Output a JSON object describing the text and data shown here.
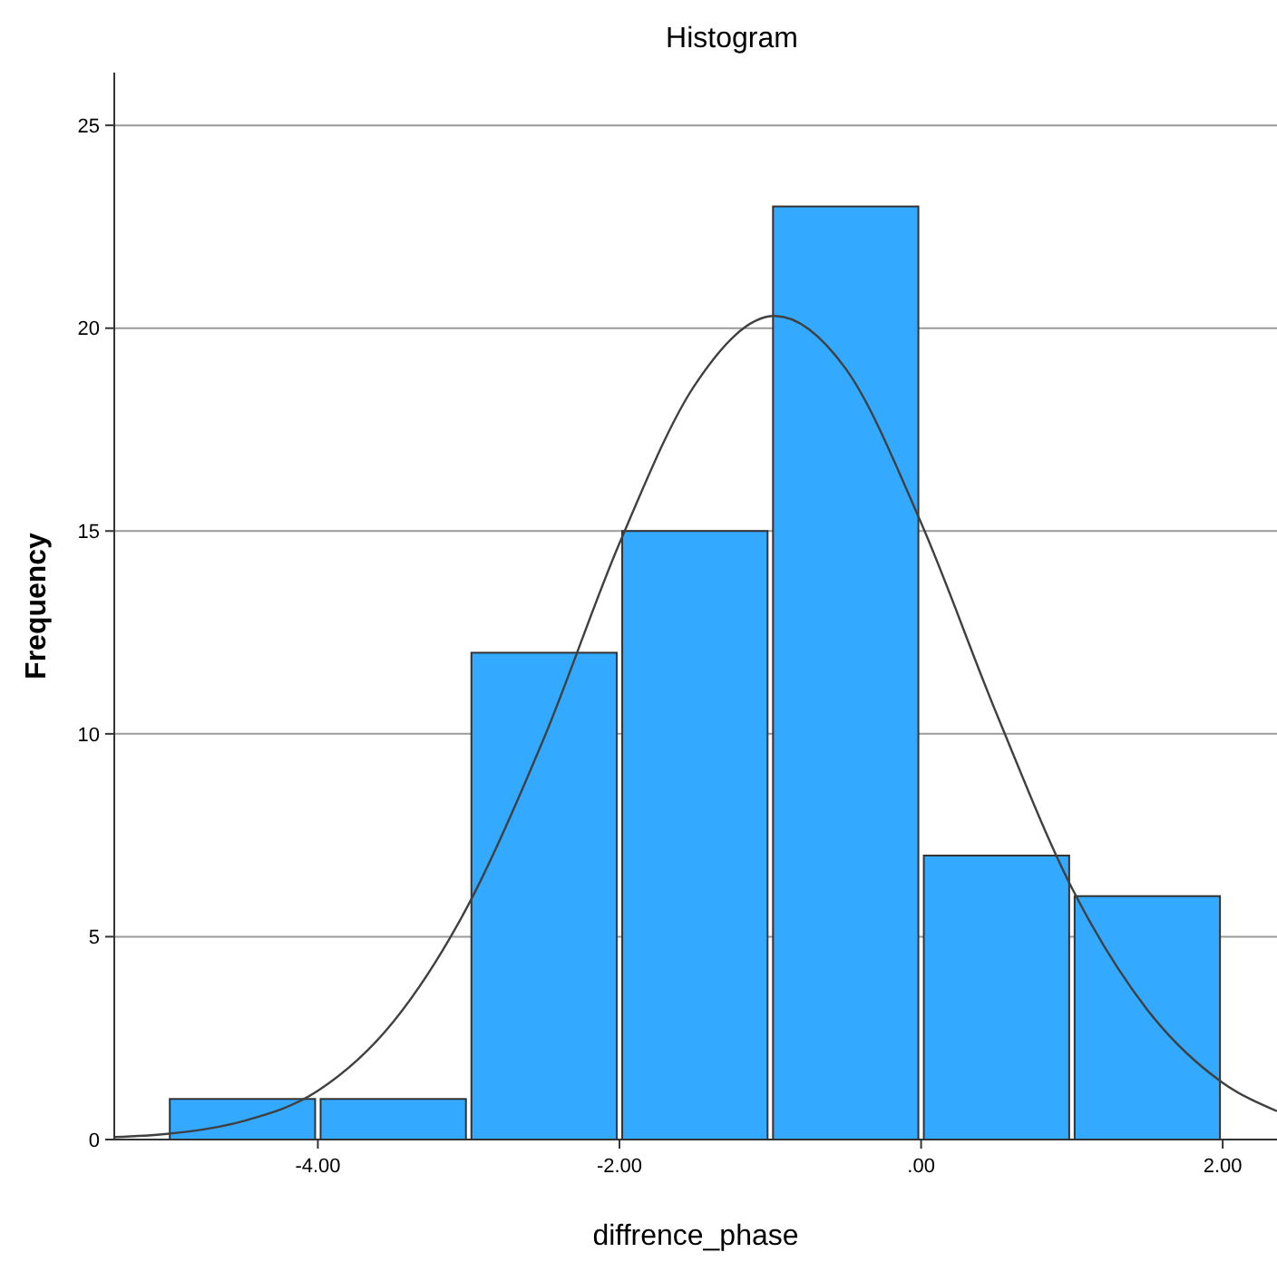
{
  "chart_data": {
    "type": "histogram",
    "title": "Histogram",
    "xlabel": "diffrence_phase",
    "ylabel": "Frequency",
    "series": [
      {
        "color": "#33aaff",
        "bins": [
          -5,
          -4,
          -3,
          -2,
          -1,
          0,
          1,
          2
        ],
        "values": [
          1,
          1,
          12,
          15,
          23,
          7,
          6
        ]
      },
      {
        "type": "line",
        "color": "#404040",
        "x": [
          -5.35,
          -5,
          -4.5,
          -4,
          -3.5,
          -3,
          -2.5,
          -2,
          -1.5,
          -0.97,
          -0.5,
          0,
          0.5,
          1,
          1.5,
          2,
          2.36
        ],
        "values": [
          0.06,
          0.14,
          0.45,
          1.2,
          2.9,
          5.8,
          9.9,
          14.7,
          18.6,
          20.3,
          19,
          15.2,
          10.5,
          6.2,
          3.2,
          1.4,
          0.7
        ]
      }
    ],
    "xlim": [
      -5.35,
      2.36
    ],
    "ylim": [
      0,
      26.3
    ],
    "xticks": [
      {
        "value": -4,
        "label": "-4.00"
      },
      {
        "value": -2,
        "label": "-2.00"
      },
      {
        "value": 0,
        "label": ".00"
      },
      {
        "value": 2,
        "label": "2.00"
      }
    ],
    "yticks": [
      0,
      5,
      10,
      15,
      20,
      25
    ],
    "grid": "y"
  }
}
